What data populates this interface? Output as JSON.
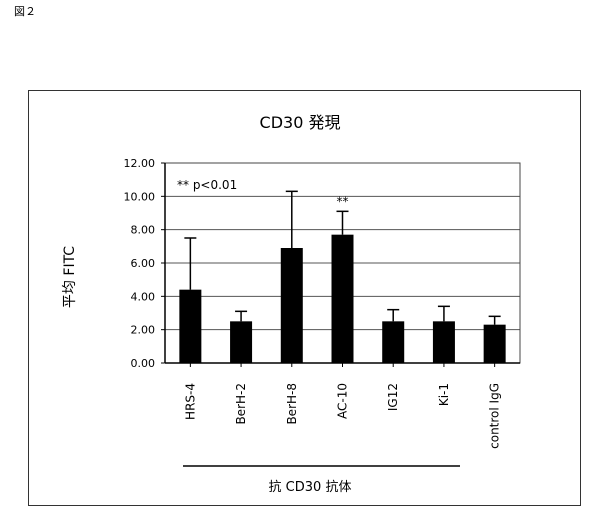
{
  "figure_label": "図２",
  "chart_data": {
    "type": "bar",
    "title": "CD30 発現",
    "ylabel": "平均 FITC",
    "xlabel": "抗 CD30 抗体",
    "categories": [
      "HRS-4",
      "BerH-2",
      "BerH-8",
      "AC-10",
      "IG12",
      "Ki-1",
      "control IgG"
    ],
    "values": [
      4.4,
      2.5,
      6.9,
      7.7,
      2.5,
      2.5,
      2.3
    ],
    "errors": [
      3.1,
      0.6,
      3.4,
      1.4,
      0.7,
      0.9,
      0.5
    ],
    "ylim": [
      0,
      12
    ],
    "yticks": [
      "0.00",
      "2.00",
      "4.00",
      "6.00",
      "8.00",
      "10.00",
      "12.00"
    ],
    "grid": true,
    "annotation": "** p<0.01",
    "significance": [
      {
        "category": "AC-10",
        "label": "**"
      }
    ],
    "bar_color": "#000000"
  }
}
